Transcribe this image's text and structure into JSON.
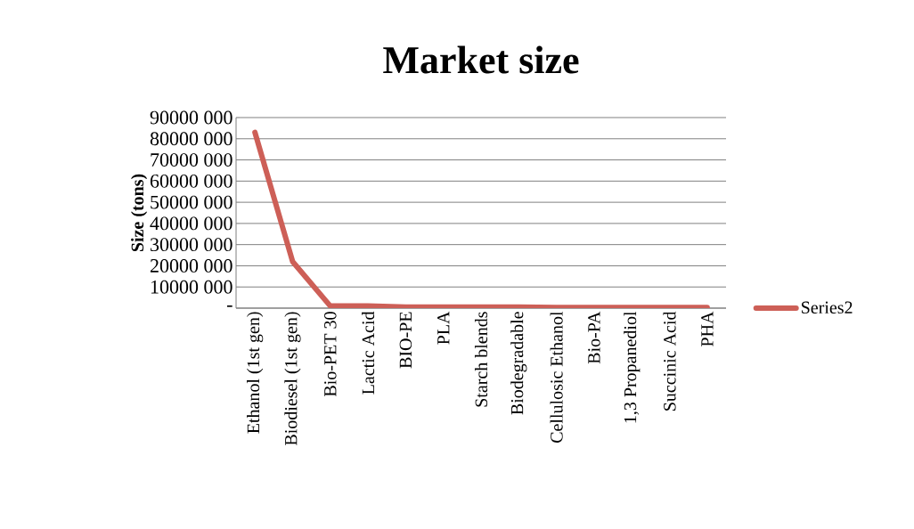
{
  "chart_data": {
    "type": "line",
    "title": "Market size",
    "ylabel": "Size (tons)",
    "categories": [
      "Ethanol (1st gen)",
      "Biodiesel (1st gen)",
      "Bio-PET 30",
      "Lactic Acid",
      "BIO-PE",
      "PLA",
      "Starch blends",
      "Biodegradable",
      "Cellulosic Ethanol",
      "Bio-PA",
      "1,3 Propanediol",
      "Succinic Acid",
      "PHA"
    ],
    "series": [
      {
        "name": "Series2",
        "color": "#cd5f57",
        "values": [
          83000000,
          22000000,
          1000000,
          1000000,
          500000,
          500000,
          500000,
          500000,
          300000,
          300000,
          300000,
          300000,
          300000
        ]
      }
    ],
    "ylim": [
      0,
      90000000
    ],
    "yticks": [
      {
        "value": 0,
        "label": "-"
      },
      {
        "value": 10000000,
        "label": "10000 000"
      },
      {
        "value": 20000000,
        "label": "20000 000"
      },
      {
        "value": 30000000,
        "label": "30000 000"
      },
      {
        "value": 40000000,
        "label": "40000 000"
      },
      {
        "value": 50000000,
        "label": "50000 000"
      },
      {
        "value": 60000000,
        "label": "60000 000"
      },
      {
        "value": 70000000,
        "label": "70000 000"
      },
      {
        "value": 80000000,
        "label": "80000 000"
      },
      {
        "value": 90000000,
        "label": "90000 000"
      }
    ],
    "grid": "y",
    "legend": "right"
  }
}
